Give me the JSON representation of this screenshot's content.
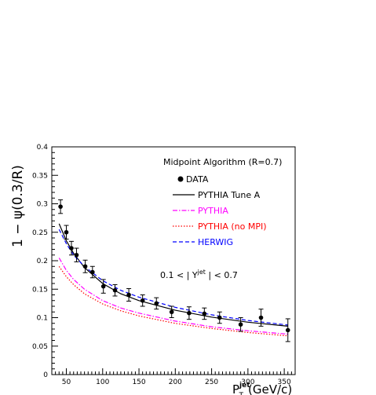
{
  "chart_data": {
    "type": "line",
    "title": "",
    "annotation": "Midpoint Algorithm (R=0.7)",
    "rapidity_cut": "0.1 < | Y^jet | < 0.7",
    "rapidity_parts": {
      "pre": "0.1 < | Y",
      "sup": "jet",
      "post": " | < 0.7"
    },
    "ylabel": "1 − ψ(0.3/R)",
    "xlabel": {
      "main": "P",
      "sub": "T",
      "sup": "jet",
      "unit": "(GeV/c)"
    },
    "xlim": [
      30,
      365
    ],
    "ylim": [
      0,
      0.4
    ],
    "x_ticks": [
      50,
      100,
      150,
      200,
      250,
      300,
      350
    ],
    "y_ticks": [
      0,
      0.05,
      0.1,
      0.15,
      0.2,
      0.25,
      0.3,
      0.35,
      0.4
    ],
    "y_tick_labels": [
      "0",
      "0.05",
      "0.1",
      "0.15",
      "0.2",
      "0.25",
      "0.3",
      "0.35",
      "0.4"
    ],
    "legend": [
      {
        "label": "DATA",
        "color": "#000000",
        "style": "marker"
      },
      {
        "label": "PYTHIA Tune A",
        "color": "#000000",
        "style": "solid"
      },
      {
        "label": "PYTHIA",
        "color": "#ff00ff",
        "style": "dashdot"
      },
      {
        "label": "PYTHIA (no MPI)",
        "color": "#ff0000",
        "style": "dotted"
      },
      {
        "label": "HERWIG",
        "color": "#0000ff",
        "style": "dashed"
      }
    ],
    "data_points": {
      "x": [
        42,
        50,
        57,
        64,
        76,
        86,
        101,
        117,
        136,
        155,
        174,
        195,
        219,
        240,
        261,
        290,
        318,
        355
      ],
      "y": [
        0.295,
        0.25,
        0.222,
        0.21,
        0.19,
        0.18,
        0.155,
        0.148,
        0.14,
        0.13,
        0.125,
        0.11,
        0.108,
        0.107,
        0.1,
        0.088,
        0.1,
        0.078
      ],
      "err": [
        0.012,
        0.012,
        0.012,
        0.012,
        0.011,
        0.01,
        0.012,
        0.01,
        0.011,
        0.01,
        0.01,
        0.01,
        0.011,
        0.01,
        0.01,
        0.012,
        0.015,
        0.02
      ]
    },
    "series": [
      {
        "name": "PYTHIA Tune A",
        "color": "#000000",
        "style": "solid",
        "x": [
          40,
          50,
          60,
          75,
          100,
          125,
          150,
          200,
          250,
          300,
          355
        ],
        "y": [
          0.265,
          0.235,
          0.213,
          0.188,
          0.16,
          0.142,
          0.13,
          0.113,
          0.101,
          0.092,
          0.085
        ]
      },
      {
        "name": "HERWIG",
        "color": "#0000ff",
        "style": "dashed",
        "x": [
          40,
          50,
          60,
          75,
          100,
          125,
          150,
          200,
          250,
          300,
          355
        ],
        "y": [
          0.255,
          0.23,
          0.21,
          0.19,
          0.165,
          0.148,
          0.136,
          0.118,
          0.105,
          0.095,
          0.087
        ]
      },
      {
        "name": "PYTHIA",
        "color": "#ff00ff",
        "style": "dashdot",
        "x": [
          40,
          50,
          60,
          75,
          100,
          125,
          150,
          200,
          250,
          300,
          355
        ],
        "y": [
          0.205,
          0.183,
          0.167,
          0.15,
          0.13,
          0.117,
          0.108,
          0.094,
          0.084,
          0.077,
          0.071
        ]
      },
      {
        "name": "PYTHIA (no MPI)",
        "color": "#ff0000",
        "style": "dotted",
        "x": [
          40,
          50,
          60,
          75,
          100,
          125,
          150,
          200,
          250,
          300,
          355
        ],
        "y": [
          0.19,
          0.172,
          0.158,
          0.142,
          0.124,
          0.112,
          0.103,
          0.09,
          0.081,
          0.074,
          0.068
        ]
      }
    ],
    "grid": false,
    "legend_position": "top-right"
  }
}
